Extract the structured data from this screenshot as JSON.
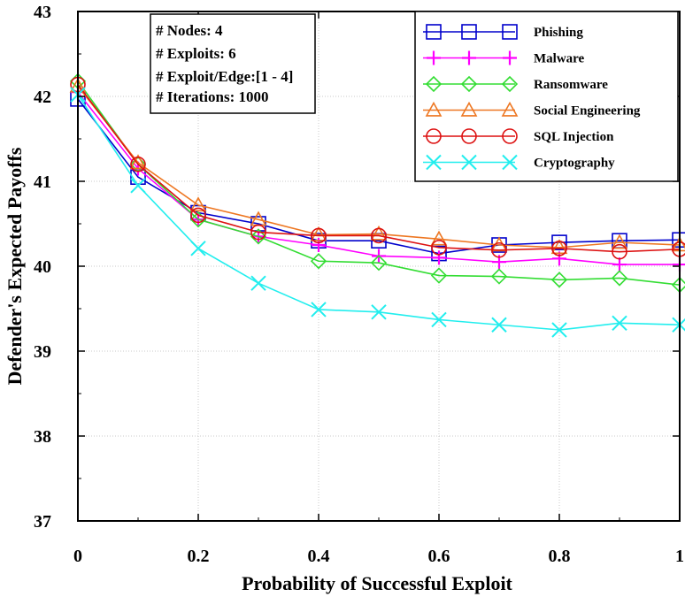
{
  "chart_data": {
    "type": "line",
    "title": "",
    "xlabel": "Probability of Successful Exploit",
    "ylabel": "Defender's Expected Payoffs",
    "xlim": [
      0,
      1
    ],
    "ylim": [
      37,
      43
    ],
    "x_ticks": [
      "0",
      "0.2",
      "0.4",
      "0.6",
      "0.8",
      "1"
    ],
    "y_ticks": [
      "37",
      "38",
      "39",
      "40",
      "41",
      "42",
      "43"
    ],
    "grid": true,
    "legend_position": "top-right",
    "annotations": [
      "# Nodes: 4",
      "# Exploits: 6",
      "# Exploit/Edge:[1 - 4]",
      "# Iterations: 1000"
    ],
    "x": [
      0,
      0.1,
      0.2,
      0.3,
      0.4,
      0.5,
      0.6,
      0.7,
      0.8,
      0.9,
      1.0
    ],
    "series": [
      {
        "name": "Phishing",
        "color": "#0000cc",
        "marker": "square",
        "values": [
          41.97,
          41.05,
          40.63,
          40.5,
          40.3,
          40.3,
          40.15,
          40.25,
          40.28,
          40.3,
          40.31
        ]
      },
      {
        "name": "Malware",
        "color": "#ff00ff",
        "marker": "plus",
        "values": [
          42.05,
          41.15,
          40.55,
          40.35,
          40.25,
          40.12,
          40.1,
          40.05,
          40.09,
          40.02,
          40.02
        ]
      },
      {
        "name": "Ransomware",
        "color": "#33dd33",
        "marker": "diamond",
        "values": [
          42.18,
          41.2,
          40.55,
          40.35,
          40.06,
          40.04,
          39.89,
          39.88,
          39.84,
          39.86,
          39.78
        ]
      },
      {
        "name": "Social Engineering",
        "color": "#ee7722",
        "marker": "triangle",
        "values": [
          42.12,
          41.22,
          40.72,
          40.55,
          40.37,
          40.38,
          40.32,
          40.25,
          40.22,
          40.28,
          40.25
        ]
      },
      {
        "name": "SQL Injection",
        "color": "#dd1111",
        "marker": "circle",
        "values": [
          42.14,
          41.2,
          40.6,
          40.4,
          40.36,
          40.36,
          40.22,
          40.19,
          40.21,
          40.17,
          40.2
        ]
      },
      {
        "name": "Cryptography",
        "color": "#22eeee",
        "marker": "x",
        "values": [
          42.02,
          40.95,
          40.21,
          39.8,
          39.49,
          39.46,
          39.37,
          39.31,
          39.25,
          39.33,
          39.31
        ]
      }
    ]
  }
}
